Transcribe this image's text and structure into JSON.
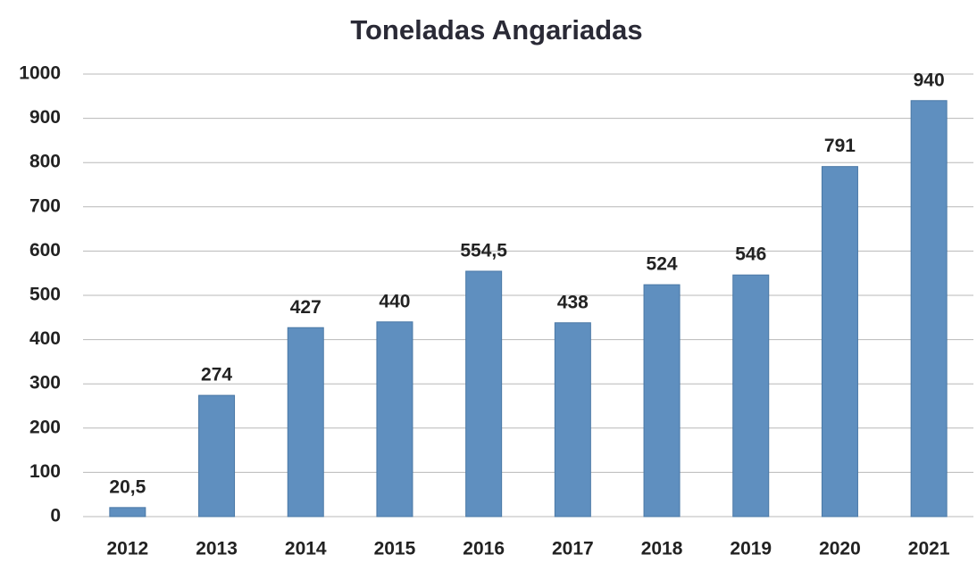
{
  "chart_data": {
    "type": "bar",
    "title": "Toneladas Angariadas",
    "categories": [
      "2012",
      "2013",
      "2014",
      "2015",
      "2016",
      "2017",
      "2018",
      "2019",
      "2020",
      "2021"
    ],
    "values": [
      20.5,
      274,
      427,
      440,
      554.5,
      438,
      524,
      546,
      791,
      940
    ],
    "value_labels": [
      "20,5",
      "274",
      "427",
      "440",
      "554,5",
      "438",
      "524",
      "546",
      "791",
      "940"
    ],
    "color": "#5f8fbf",
    "ylim": [
      0,
      1000
    ],
    "yticks": [
      0,
      100,
      200,
      300,
      400,
      500,
      600,
      700,
      800,
      900,
      1000
    ],
    "grid": true
  }
}
